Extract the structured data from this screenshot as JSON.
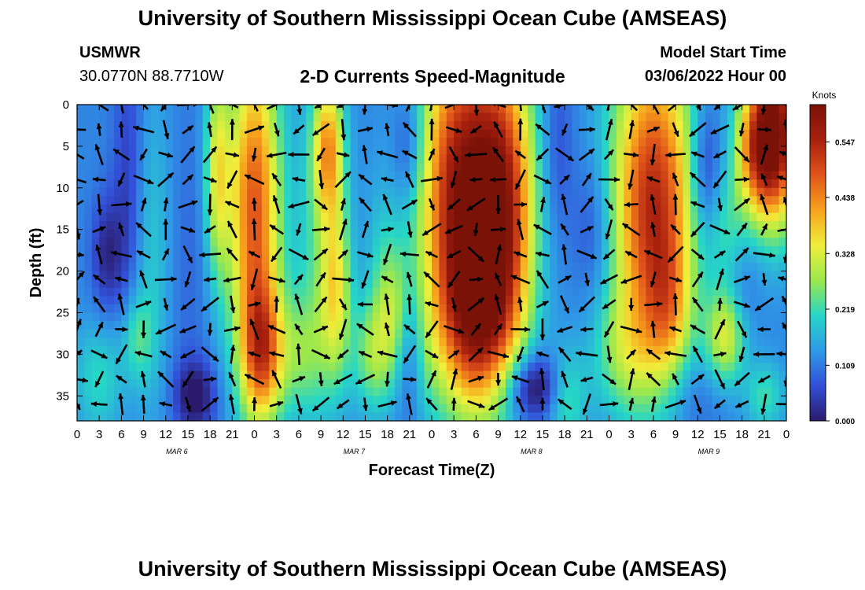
{
  "header": {
    "title": "University of Southern Mississippi Ocean Cube (AMSEAS)",
    "station": "USMWR",
    "location": "30.0770N  88.7710W",
    "plot_title": "2-D Currents Speed-Magnitude",
    "model_start_label": "Model Start Time",
    "model_start_value": "03/06/2022 Hour 00"
  },
  "footer": {
    "title": "University of Southern Mississippi Ocean Cube (AMSEAS)"
  },
  "chart_data": {
    "type": "heatmap",
    "title": "2-D Currents Speed-Magnitude",
    "xlabel": "Forecast Time(Z)",
    "ylabel": "Depth (ft)",
    "x_ticks": [
      "0",
      "3",
      "6",
      "9",
      "12",
      "15",
      "18",
      "21",
      "0",
      "3",
      "6",
      "9",
      "12",
      "15",
      "18",
      "21",
      "0",
      "3",
      "6",
      "9",
      "12",
      "15",
      "18",
      "21",
      "0",
      "3",
      "6",
      "9",
      "12",
      "15",
      "18",
      "21",
      "0"
    ],
    "date_labels": [
      "MAR 6",
      "MAR 7",
      "MAR 8",
      "MAR 9"
    ],
    "date_label_hours": [
      13.5,
      37.5,
      61.5,
      85.5
    ],
    "xlim": [
      0,
      96
    ],
    "ylim": [
      0,
      38
    ],
    "y_ticks": [
      0,
      5,
      10,
      15,
      20,
      25,
      30,
      35
    ],
    "colorbar": {
      "unit": "Knots",
      "ticks": [
        0.0,
        0.109,
        0.219,
        0.328,
        0.438,
        0.547
      ],
      "tick_labels": [
        "0.000",
        "0.109",
        "0.219",
        "0.328",
        "0.438",
        "0.547"
      ],
      "range": [
        0,
        0.62
      ]
    },
    "colormap": [
      "#2b1a6b",
      "#3250d8",
      "#2f9ae6",
      "#26d6c6",
      "#9be84d",
      "#f0ee3a",
      "#f7a21c",
      "#e0541a",
      "#a8200e",
      "#7a1208"
    ],
    "speed_features": [
      {
        "t": 4,
        "d": 18,
        "st": 1.5,
        "sd": 5,
        "v": -0.1
      },
      {
        "t": 3,
        "d": 33,
        "st": 2.5,
        "sd": 5,
        "v": 0.09
      },
      {
        "t": 7,
        "d": 10,
        "st": 1.5,
        "sd": 14,
        "v": -0.08
      },
      {
        "t": 8,
        "d": 28,
        "st": 1.5,
        "sd": 4,
        "v": 0.1
      },
      {
        "t": 10,
        "d": 18,
        "st": 2,
        "sd": 14,
        "v": 0.07
      },
      {
        "t": 15,
        "d": 20,
        "st": 2,
        "sd": 14,
        "v": -0.03
      },
      {
        "t": 16,
        "d": 35,
        "st": 2,
        "sd": 3,
        "v": -0.13
      },
      {
        "t": 19,
        "d": 8,
        "st": 1.2,
        "sd": 9,
        "v": 0.2
      },
      {
        "t": 24,
        "d": 12,
        "st": 2.5,
        "sd": 14,
        "v": 0.36
      },
      {
        "t": 25,
        "d": 30,
        "st": 2,
        "sd": 6,
        "v": 0.28
      },
      {
        "t": 30,
        "d": 30,
        "st": 2.5,
        "sd": 5,
        "v": 0.1
      },
      {
        "t": 32,
        "d": 20,
        "st": 2,
        "sd": 14,
        "v": 0.08
      },
      {
        "t": 34,
        "d": 5,
        "st": 1.5,
        "sd": 6,
        "v": 0.28
      },
      {
        "t": 35,
        "d": 22,
        "st": 1.5,
        "sd": 8,
        "v": 0.22
      },
      {
        "t": 40,
        "d": 30,
        "st": 2,
        "sd": 5,
        "v": 0.14
      },
      {
        "t": 41,
        "d": 20,
        "st": 1.5,
        "sd": 8,
        "v": 0.06
      },
      {
        "t": 43,
        "d": 25,
        "st": 1.5,
        "sd": 6,
        "v": 0.13
      },
      {
        "t": 45,
        "d": 5,
        "st": 1.5,
        "sd": 5,
        "v": -0.09
      },
      {
        "t": 45,
        "d": 30,
        "st": 1.5,
        "sd": 6,
        "v": -0.08
      },
      {
        "t": 47,
        "d": 30,
        "st": 1.5,
        "sd": 6,
        "v": 0.05
      },
      {
        "t": 52,
        "d": 10,
        "st": 4,
        "sd": 14,
        "v": 0.45
      },
      {
        "t": 54,
        "d": 26,
        "st": 3.5,
        "sd": 8,
        "v": 0.28
      },
      {
        "t": 58,
        "d": 12,
        "st": 3,
        "sd": 13,
        "v": 0.34
      },
      {
        "t": 62,
        "d": 34,
        "st": 3,
        "sd": 3,
        "v": -0.18
      },
      {
        "t": 65,
        "d": 5,
        "st": 1.5,
        "sd": 8,
        "v": -0.06
      },
      {
        "t": 66,
        "d": 35,
        "st": 2,
        "sd": 4,
        "v": 0.14
      },
      {
        "t": 70,
        "d": 15,
        "st": 2,
        "sd": 6,
        "v": -0.07
      },
      {
        "t": 74,
        "d": 30,
        "st": 3,
        "sd": 5,
        "v": 0.1
      },
      {
        "t": 78,
        "d": 12,
        "st": 4,
        "sd": 14,
        "v": 0.42
      },
      {
        "t": 80,
        "d": 25,
        "st": 2,
        "sd": 6,
        "v": 0.12
      },
      {
        "t": 83,
        "d": 35,
        "st": 3,
        "sd": 4,
        "v": -0.05
      },
      {
        "t": 85,
        "d": 8,
        "st": 1.5,
        "sd": 6,
        "v": -0.12
      },
      {
        "t": 88,
        "d": 15,
        "st": 2,
        "sd": 5,
        "v": 0.08
      },
      {
        "t": 88,
        "d": 28,
        "st": 2,
        "sd": 4,
        "v": 0.21
      },
      {
        "t": 92,
        "d": 5,
        "st": 2,
        "sd": 6,
        "v": 0.36
      },
      {
        "t": 95,
        "d": 3,
        "st": 2,
        "sd": 8,
        "v": 0.42
      },
      {
        "t": 93,
        "d": 35,
        "st": 2,
        "sd": 3,
        "v": 0.1
      },
      {
        "t": 90,
        "d": 25,
        "st": 1.5,
        "sd": 6,
        "v": -0.05
      }
    ]
  }
}
